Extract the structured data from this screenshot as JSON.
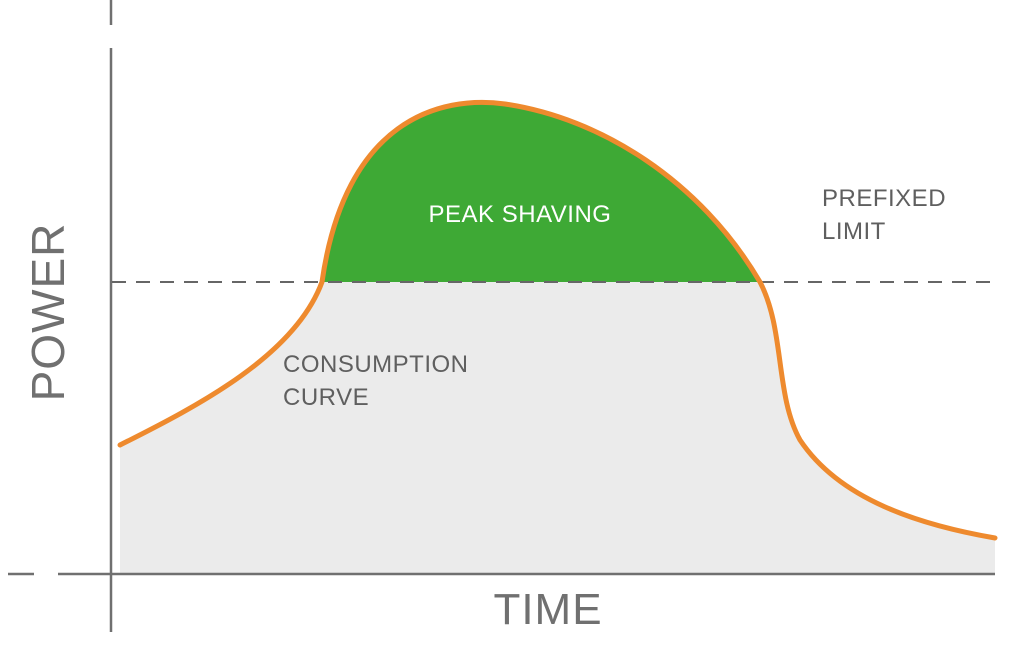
{
  "axes": {
    "y_label": "POWER",
    "x_label": "TIME"
  },
  "labels": {
    "peak_shaving": "PEAK SHAVING",
    "prefixed_limit": [
      "PREFIXED",
      "LIMIT"
    ],
    "consumption_curve": [
      "CONSUMPTION",
      "CURVE"
    ]
  },
  "colors": {
    "curve": "#ee8a2e",
    "peak_fill": "#3ea935",
    "area_fill": "#ebebeb",
    "axis": "#707070",
    "limit_line": "#666666"
  }
}
